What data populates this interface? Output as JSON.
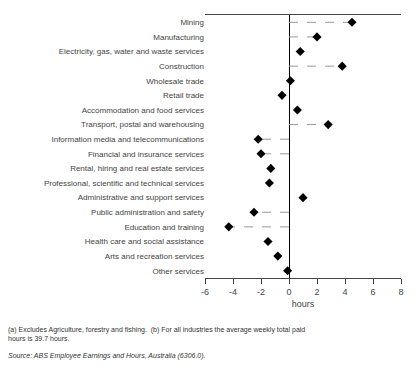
{
  "chart_data": {
    "type": "scatter",
    "orientation": "horizontal",
    "categories": [
      "Mining",
      "Manufacturing",
      "Electricity, gas, water and waste services",
      "Construction",
      "Wholesale trade",
      "Retail trade",
      "Accommodation and food services",
      "Transport, postal and warehousing",
      "Information media and telecommunications",
      "Financial and insurance services",
      "Rental, hiring and real estate services",
      "Professional, scientific and technical services",
      "Administrative and support services",
      "Public administration and safety",
      "Education and training",
      "Health care and social assistance",
      "Arts and recreation services",
      "Other services"
    ],
    "values": [
      4.5,
      2.0,
      0.8,
      3.8,
      0.1,
      -0.5,
      0.6,
      2.8,
      -2.2,
      -2.0,
      -1.3,
      -1.4,
      1.0,
      -2.5,
      -4.3,
      -1.5,
      -0.8,
      -0.1
    ],
    "line_style": [
      "dashed",
      "dashed",
      "none",
      "dashed",
      "none",
      "none",
      "none",
      "dashed",
      "dashed",
      "dashed",
      "none",
      "none",
      "none",
      "dashed",
      "dashed",
      "none",
      "none",
      "none"
    ],
    "marker": "diamond",
    "color": "#000000",
    "xlabel": "hours",
    "xlim": [
      -6,
      8
    ],
    "xticks": [
      -6,
      -4,
      -2,
      0,
      2,
      4,
      6,
      8
    ],
    "grid": false,
    "annotations": [
      "(a) Excludes Agriculture, forestry and fishing.  (b) For all industries the average weekly total paid\nhours is 39.7 hours.",
      "Source: ABS Employee Earnings and Hours, Australia (6306.0)."
    ]
  }
}
